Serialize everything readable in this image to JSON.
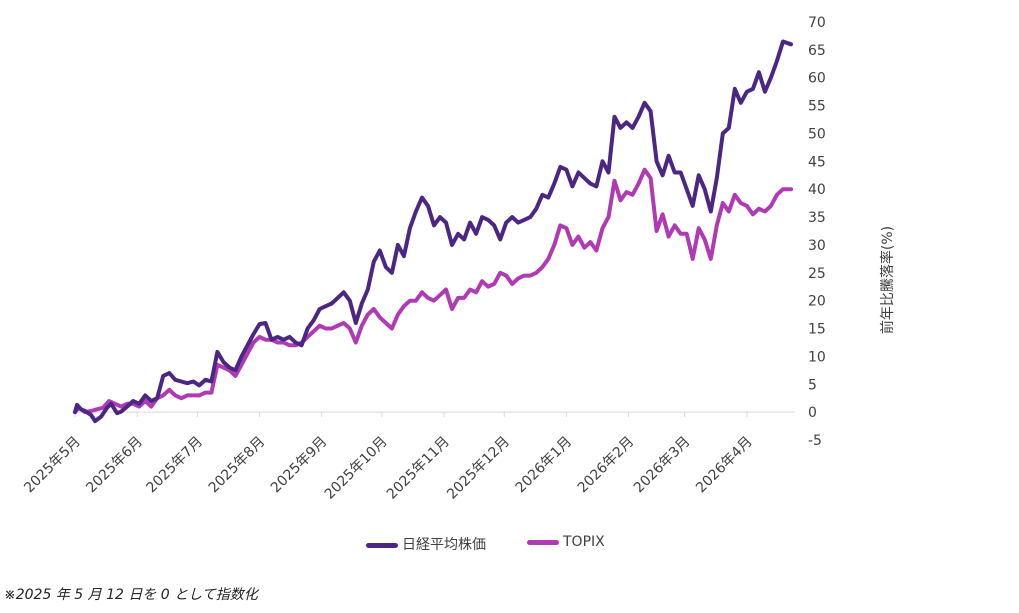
{
  "chart_data": {
    "type": "line",
    "ylabel": "前年比騰落率(%)",
    "ylim": [
      -5,
      70
    ],
    "yticks": [
      -5,
      0,
      5,
      10,
      15,
      20,
      25,
      30,
      35,
      40,
      45,
      50,
      55,
      60,
      65,
      70
    ],
    "xlim": [
      "2025-05-12",
      "2026-05-06"
    ],
    "xticks": [
      {
        "date": "2025-05-12",
        "label": "2025年5月"
      },
      {
        "date": "2025-06-12",
        "label": "2025年6月"
      },
      {
        "date": "2025-07-12",
        "label": "2025年7月"
      },
      {
        "date": "2025-08-12",
        "label": "2025年8月"
      },
      {
        "date": "2025-09-12",
        "label": "2025年9月"
      },
      {
        "date": "2025-10-12",
        "label": "2025年10月"
      },
      {
        "date": "2025-11-12",
        "label": "2025年11月"
      },
      {
        "date": "2025-12-12",
        "label": "2025年12月"
      },
      {
        "date": "2026-01-12",
        "label": "2026年1月"
      },
      {
        "date": "2026-02-12",
        "label": "2026年2月"
      },
      {
        "date": "2026-03-12",
        "label": "2026年3月"
      },
      {
        "date": "2026-04-12",
        "label": "2026年4月"
      }
    ],
    "legend_position": "bottom",
    "grid": false,
    "series": [
      {
        "name": "日経平均株価",
        "color": "#4b2683",
        "points": [
          [
            "2025-05-12",
            0
          ],
          [
            "2025-05-13",
            1.3
          ],
          [
            "2025-05-15",
            0.5
          ],
          [
            "2025-05-17",
            0.2
          ],
          [
            "2025-05-20",
            -0.5
          ],
          [
            "2025-05-22",
            -1.6
          ],
          [
            "2025-05-25",
            -0.8
          ],
          [
            "2025-05-28",
            0.8
          ],
          [
            "2025-05-30",
            1.5
          ],
          [
            "2025-06-02",
            -0.2
          ],
          [
            "2025-06-04",
            0.1
          ],
          [
            "2025-06-07",
            1
          ],
          [
            "2025-06-10",
            2
          ],
          [
            "2025-06-13",
            1.5
          ],
          [
            "2025-06-16",
            3
          ],
          [
            "2025-06-19",
            2
          ],
          [
            "2025-06-22",
            2.5
          ],
          [
            "2025-06-25",
            6.5
          ],
          [
            "2025-06-28",
            7
          ],
          [
            "2025-07-01",
            5.8
          ],
          [
            "2025-07-04",
            5.5
          ],
          [
            "2025-07-07",
            5.2
          ],
          [
            "2025-07-10",
            5.5
          ],
          [
            "2025-07-13",
            4.8
          ],
          [
            "2025-07-16",
            5.8
          ],
          [
            "2025-07-19",
            5.5
          ],
          [
            "2025-07-22",
            10.8
          ],
          [
            "2025-07-25",
            9
          ],
          [
            "2025-07-28",
            8
          ],
          [
            "2025-07-31",
            7.5
          ],
          [
            "2025-08-03",
            10
          ],
          [
            "2025-08-06",
            12
          ],
          [
            "2025-08-09",
            14
          ],
          [
            "2025-08-12",
            15.8
          ],
          [
            "2025-08-15",
            16
          ],
          [
            "2025-08-18",
            13
          ],
          [
            "2025-08-21",
            13.5
          ],
          [
            "2025-08-24",
            13
          ],
          [
            "2025-08-27",
            13.5
          ],
          [
            "2025-08-30",
            12.5
          ],
          [
            "2025-09-02",
            12
          ],
          [
            "2025-09-05",
            15
          ],
          [
            "2025-09-08",
            16.5
          ],
          [
            "2025-09-11",
            18.5
          ],
          [
            "2025-09-14",
            19
          ],
          [
            "2025-09-17",
            19.5
          ],
          [
            "2025-09-20",
            20.5
          ],
          [
            "2025-09-23",
            21.5
          ],
          [
            "2025-09-26",
            20
          ],
          [
            "2025-09-29",
            16
          ],
          [
            "2025-10-02",
            19.5
          ],
          [
            "2025-10-05",
            22
          ],
          [
            "2025-10-08",
            27
          ],
          [
            "2025-10-11",
            29
          ],
          [
            "2025-10-14",
            26
          ],
          [
            "2025-10-17",
            25
          ],
          [
            "2025-10-20",
            30
          ],
          [
            "2025-10-23",
            28
          ],
          [
            "2025-10-26",
            33
          ],
          [
            "2025-10-29",
            36
          ],
          [
            "2025-11-01",
            38.5
          ],
          [
            "2025-11-04",
            37
          ],
          [
            "2025-11-07",
            33.5
          ],
          [
            "2025-11-10",
            35
          ],
          [
            "2025-11-13",
            34
          ],
          [
            "2025-11-16",
            30
          ],
          [
            "2025-11-19",
            32
          ],
          [
            "2025-11-22",
            31
          ],
          [
            "2025-11-25",
            34
          ],
          [
            "2025-11-28",
            32
          ],
          [
            "2025-12-01",
            35
          ],
          [
            "2025-12-04",
            34.5
          ],
          [
            "2025-12-07",
            33.5
          ],
          [
            "2025-12-10",
            31
          ],
          [
            "2025-12-13",
            34
          ],
          [
            "2025-12-16",
            35
          ],
          [
            "2025-12-19",
            34
          ],
          [
            "2025-12-22",
            34.5
          ],
          [
            "2025-12-25",
            35
          ],
          [
            "2025-12-28",
            36.5
          ],
          [
            "2025-12-31",
            39
          ],
          [
            "2026-01-03",
            38.5
          ],
          [
            "2026-01-06",
            41
          ],
          [
            "2026-01-09",
            44
          ],
          [
            "2026-01-12",
            43.5
          ],
          [
            "2026-01-15",
            40.5
          ],
          [
            "2026-01-18",
            43
          ],
          [
            "2026-01-21",
            42
          ],
          [
            "2026-01-24",
            41
          ],
          [
            "2026-01-27",
            40.5
          ],
          [
            "2026-01-30",
            45
          ],
          [
            "2026-02-02",
            43
          ],
          [
            "2026-02-05",
            53
          ],
          [
            "2026-02-08",
            51
          ],
          [
            "2026-02-11",
            52
          ],
          [
            "2026-02-14",
            51
          ],
          [
            "2026-02-17",
            53
          ],
          [
            "2026-02-20",
            55.5
          ],
          [
            "2026-02-23",
            54
          ],
          [
            "2026-02-26",
            45
          ],
          [
            "2026-03-01",
            42.5
          ],
          [
            "2026-03-04",
            46
          ],
          [
            "2026-03-07",
            43
          ],
          [
            "2026-03-10",
            43
          ],
          [
            "2026-03-13",
            40
          ],
          [
            "2026-03-16",
            37
          ],
          [
            "2026-03-19",
            42.5
          ],
          [
            "2026-03-22",
            40
          ],
          [
            "2026-03-25",
            36
          ],
          [
            "2026-03-28",
            42
          ],
          [
            "2026-03-31",
            50
          ],
          [
            "2026-04-03",
            51
          ],
          [
            "2026-04-06",
            58
          ],
          [
            "2026-04-09",
            55.5
          ],
          [
            "2026-04-12",
            57.5
          ],
          [
            "2026-04-15",
            58
          ],
          [
            "2026-04-18",
            61
          ],
          [
            "2026-04-21",
            57.5
          ],
          [
            "2026-04-24",
            60
          ],
          [
            "2026-04-27",
            63
          ],
          [
            "2026-04-30",
            66.5
          ],
          [
            "2026-05-04",
            66
          ]
        ]
      },
      {
        "name": "TOPIX",
        "color": "#b03ab3",
        "points": [
          [
            "2025-05-12",
            0
          ],
          [
            "2025-05-14",
            0.8
          ],
          [
            "2025-05-17",
            0
          ],
          [
            "2025-05-20",
            0.2
          ],
          [
            "2025-05-23",
            0.5
          ],
          [
            "2025-05-26",
            0.8
          ],
          [
            "2025-05-29",
            2
          ],
          [
            "2025-06-01",
            1.5
          ],
          [
            "2025-06-04",
            1
          ],
          [
            "2025-06-07",
            1.5
          ],
          [
            "2025-06-10",
            1.5
          ],
          [
            "2025-06-13",
            1
          ],
          [
            "2025-06-16",
            2
          ],
          [
            "2025-06-19",
            1
          ],
          [
            "2025-06-22",
            2.5
          ],
          [
            "2025-06-25",
            3
          ],
          [
            "2025-06-28",
            4
          ],
          [
            "2025-07-01",
            3
          ],
          [
            "2025-07-04",
            2.5
          ],
          [
            "2025-07-07",
            3
          ],
          [
            "2025-07-10",
            3
          ],
          [
            "2025-07-13",
            3
          ],
          [
            "2025-07-16",
            3.5
          ],
          [
            "2025-07-19",
            3.5
          ],
          [
            "2025-07-22",
            8.5
          ],
          [
            "2025-07-25",
            8
          ],
          [
            "2025-07-28",
            7.5
          ],
          [
            "2025-07-31",
            6.5
          ],
          [
            "2025-08-03",
            8.5
          ],
          [
            "2025-08-06",
            10.5
          ],
          [
            "2025-08-09",
            12.5
          ],
          [
            "2025-08-12",
            13.5
          ],
          [
            "2025-08-15",
            13
          ],
          [
            "2025-08-18",
            13
          ],
          [
            "2025-08-21",
            12.5
          ],
          [
            "2025-08-24",
            12.5
          ],
          [
            "2025-08-27",
            12
          ],
          [
            "2025-08-30",
            12
          ],
          [
            "2025-09-02",
            12.5
          ],
          [
            "2025-09-05",
            13.5
          ],
          [
            "2025-09-08",
            14.5
          ],
          [
            "2025-09-11",
            15.5
          ],
          [
            "2025-09-14",
            15
          ],
          [
            "2025-09-17",
            15
          ],
          [
            "2025-09-20",
            15.5
          ],
          [
            "2025-09-23",
            16
          ],
          [
            "2025-09-26",
            15
          ],
          [
            "2025-09-29",
            12.5
          ],
          [
            "2025-10-02",
            15.5
          ],
          [
            "2025-10-05",
            17.5
          ],
          [
            "2025-10-08",
            18.5
          ],
          [
            "2025-10-11",
            17
          ],
          [
            "2025-10-14",
            16
          ],
          [
            "2025-10-17",
            15
          ],
          [
            "2025-10-20",
            17.5
          ],
          [
            "2025-10-23",
            19
          ],
          [
            "2025-10-26",
            20
          ],
          [
            "2025-10-29",
            20
          ],
          [
            "2025-11-01",
            21.5
          ],
          [
            "2025-11-04",
            20.5
          ],
          [
            "2025-11-07",
            20
          ],
          [
            "2025-11-10",
            21
          ],
          [
            "2025-11-13",
            22
          ],
          [
            "2025-11-16",
            18.5
          ],
          [
            "2025-11-19",
            20.5
          ],
          [
            "2025-11-22",
            20.5
          ],
          [
            "2025-11-25",
            22
          ],
          [
            "2025-11-28",
            21.5
          ],
          [
            "2025-12-01",
            23.5
          ],
          [
            "2025-12-04",
            22.5
          ],
          [
            "2025-12-07",
            23
          ],
          [
            "2025-12-10",
            25
          ],
          [
            "2025-12-13",
            24.5
          ],
          [
            "2025-12-16",
            23
          ],
          [
            "2025-12-19",
            24
          ],
          [
            "2025-12-22",
            24.5
          ],
          [
            "2025-12-25",
            24.5
          ],
          [
            "2025-12-28",
            25
          ],
          [
            "2025-12-31",
            26
          ],
          [
            "2026-01-03",
            27.5
          ],
          [
            "2026-01-06",
            30
          ],
          [
            "2026-01-09",
            33.5
          ],
          [
            "2026-01-12",
            33
          ],
          [
            "2026-01-15",
            30
          ],
          [
            "2026-01-18",
            31.5
          ],
          [
            "2026-01-21",
            29.5
          ],
          [
            "2026-01-24",
            30.5
          ],
          [
            "2026-01-27",
            29
          ],
          [
            "2026-01-30",
            33
          ],
          [
            "2026-02-02",
            35
          ],
          [
            "2026-02-05",
            41.5
          ],
          [
            "2026-02-08",
            38
          ],
          [
            "2026-02-11",
            39.5
          ],
          [
            "2026-02-14",
            39
          ],
          [
            "2026-02-17",
            41
          ],
          [
            "2026-02-20",
            43.5
          ],
          [
            "2026-02-23",
            42
          ],
          [
            "2026-02-26",
            32.5
          ],
          [
            "2026-03-01",
            35.5
          ],
          [
            "2026-03-04",
            31.5
          ],
          [
            "2026-03-07",
            33.5
          ],
          [
            "2026-03-10",
            32
          ],
          [
            "2026-03-13",
            32
          ],
          [
            "2026-03-16",
            27.5
          ],
          [
            "2026-03-19",
            33
          ],
          [
            "2026-03-22",
            31
          ],
          [
            "2026-03-25",
            27.5
          ],
          [
            "2026-03-28",
            33.5
          ],
          [
            "2026-03-31",
            37.5
          ],
          [
            "2026-04-03",
            36
          ],
          [
            "2026-04-06",
            39
          ],
          [
            "2026-04-09",
            37.5
          ],
          [
            "2026-04-12",
            37
          ],
          [
            "2026-04-15",
            35.5
          ],
          [
            "2026-04-18",
            36.5
          ],
          [
            "2026-04-21",
            36
          ],
          [
            "2026-04-24",
            37
          ],
          [
            "2026-04-27",
            39
          ],
          [
            "2026-04-30",
            40
          ],
          [
            "2026-05-04",
            40
          ]
        ]
      }
    ]
  },
  "footnote": "※2025 年 5 月 12 日を 0 として指数化"
}
